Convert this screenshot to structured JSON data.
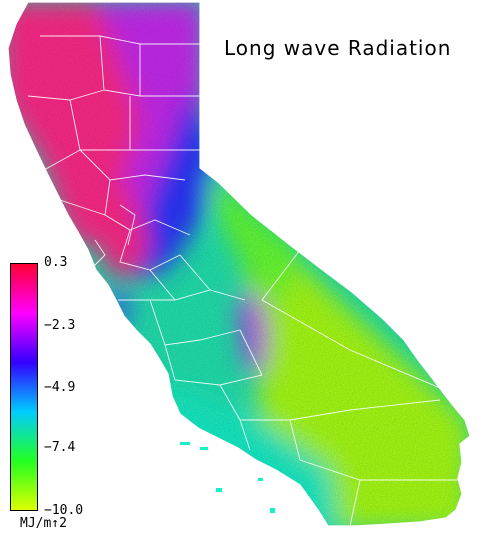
{
  "title": "Long wave Radiation",
  "legend": {
    "units": "MJ/m↑2",
    "ticks": [
      "0.3",
      "−2.3",
      "−4.9",
      "−7.4",
      "−10.0"
    ],
    "tick_values": [
      0.3,
      -2.3,
      -4.9,
      -7.4,
      -10.0
    ],
    "range": [
      -10.0,
      0.3
    ],
    "colors": [
      "#ff0033",
      "#ff00ff",
      "#3300ff",
      "#00ccff",
      "#22ff22",
      "#ddff00"
    ]
  },
  "region_colors": {
    "north_coast": "#ff2a8a",
    "north_interior": "#c72bf0",
    "sierra_nevada": "#2a34ff",
    "central_valley": "#22e4b0",
    "southern_coast": "#18f0c8",
    "desert": "#a8ff18",
    "great_basin_strip": "#66ff33"
  }
}
